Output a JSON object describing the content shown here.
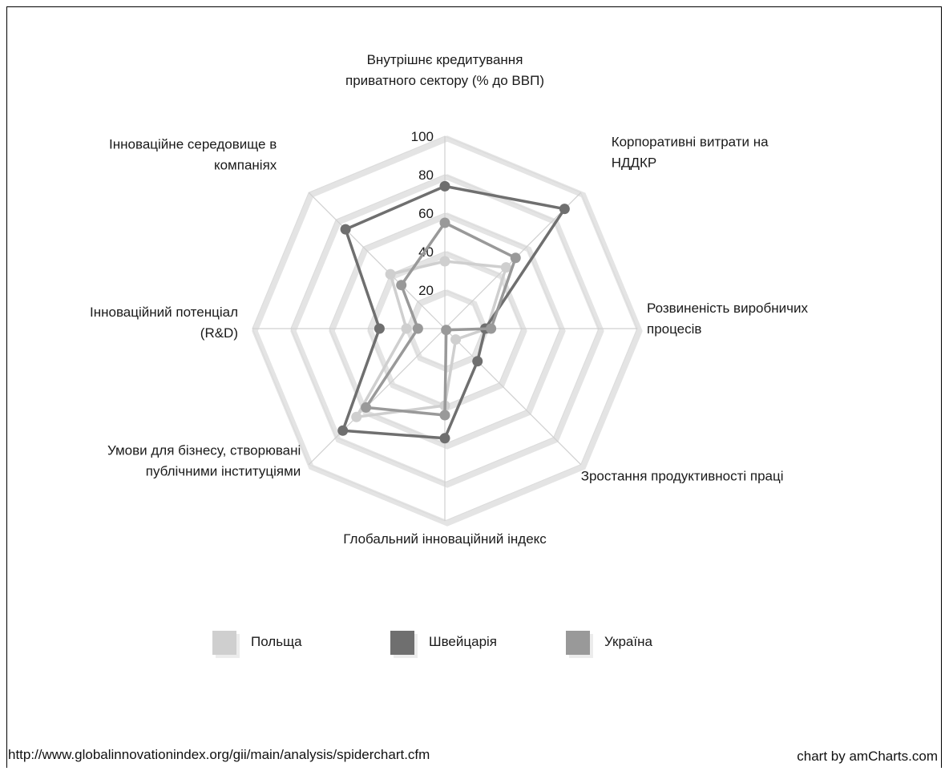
{
  "chart_data": {
    "type": "radar",
    "title": "",
    "axes": [
      "Внутрішнє кредитування|приватного сектору (% до ВВП)",
      "Корпоративні витрати на|НДДКР",
      "Розвиненість виробничих|процесів",
      "Зростання продуктивності праці",
      "Глобальний інноваційний індекс",
      "Умови для бізнесу, створювані|публічними інституціями",
      "Інноваційний потенціал|(R&D)",
      "Інноваційне середовище в|компаніях"
    ],
    "rlim": [
      0,
      100
    ],
    "ticks": [
      20,
      40,
      60,
      80,
      100
    ],
    "series": [
      {
        "name": "Польща",
        "color": "#cfcfcf",
        "values": [
          35,
          45,
          22,
          8,
          40,
          65,
          20,
          40
        ]
      },
      {
        "name": "Швейцарія",
        "color": "#6f6f6f",
        "values": [
          74,
          88,
          21,
          24,
          57,
          75,
          34,
          73
        ]
      },
      {
        "name": "Україна",
        "color": "#999999",
        "values": [
          55,
          52,
          24,
          1,
          45,
          58,
          14,
          32
        ]
      }
    ],
    "legend": "bottom",
    "grid": true
  },
  "footer": {
    "source": "http://www.globalinnovationindex.org/gii/main/analysis/spiderchart.cfm",
    "credit": "chart by amCharts.com"
  }
}
